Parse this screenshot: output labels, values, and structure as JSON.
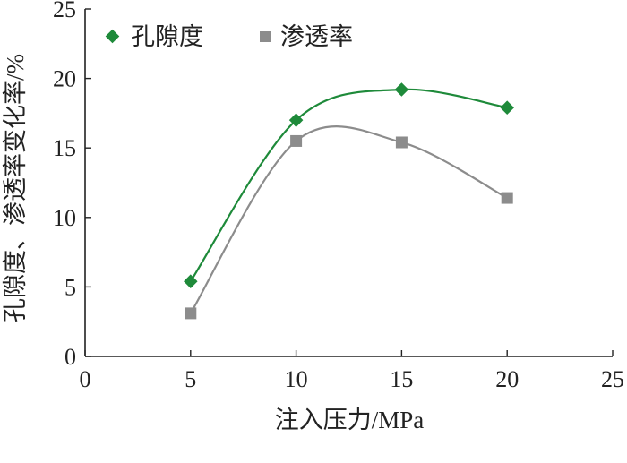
{
  "chart_data": {
    "type": "line",
    "xlabel": "注入压力/MPa",
    "ylabel": "孔隙度、渗透率变化率/%",
    "xlim": [
      0,
      25
    ],
    "ylim": [
      0,
      25
    ],
    "x_ticks": [
      "0",
      "5",
      "10",
      "15",
      "20",
      "25"
    ],
    "y_ticks": [
      "0",
      "5",
      "10",
      "15",
      "20",
      "25"
    ],
    "grid": false,
    "legend_position": "top-left",
    "series": [
      {
        "name": "孔隙度",
        "marker": "diamond",
        "color": "#1e8a3a",
        "x": [
          5,
          10,
          15,
          20
        ],
        "y": [
          5.4,
          17.0,
          19.2,
          17.9
        ]
      },
      {
        "name": "渗透率",
        "marker": "square",
        "color": "#8c8c8c",
        "x": [
          5,
          10,
          15,
          20
        ],
        "y": [
          3.1,
          15.5,
          15.4,
          11.4
        ]
      }
    ]
  }
}
